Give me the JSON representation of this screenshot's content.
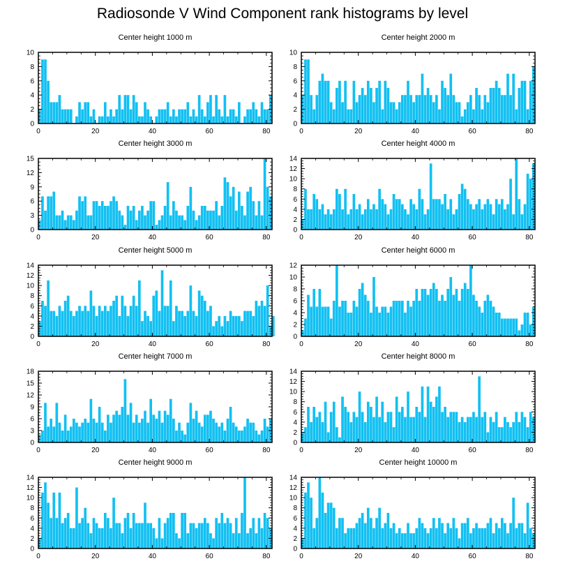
{
  "page": {
    "title": "Radiosonde V Wind Component rank histograms by level"
  },
  "chart_data": [
    {
      "type": "bar",
      "title": "Center height 1000 m",
      "xlim": [
        0,
        82
      ],
      "ylim": [
        0,
        10
      ],
      "xticks": [
        0,
        20,
        40,
        60,
        80
      ],
      "yticks": [
        0,
        2,
        4,
        6,
        8,
        10
      ],
      "xticklabels": [
        "0",
        "20",
        "40",
        "60",
        "80"
      ],
      "yticklabels": [
        "0",
        "2",
        "4",
        "6",
        "8",
        "10"
      ],
      "bar_color": "#12c0f2",
      "values": [
        2,
        9,
        9,
        6,
        3,
        3,
        3,
        4,
        2,
        2,
        2,
        2,
        0,
        1,
        3,
        2,
        3,
        3,
        1,
        2,
        0,
        1,
        1,
        3,
        1,
        2,
        1,
        2,
        4,
        2,
        4,
        4,
        2,
        4,
        3,
        1,
        1,
        3,
        2,
        1,
        0,
        1,
        2,
        2,
        2,
        3,
        1,
        2,
        1,
        2,
        2,
        2,
        3,
        1,
        2,
        1,
        4,
        2,
        1,
        3,
        4,
        1,
        4,
        2,
        1,
        4,
        1,
        2,
        2,
        1,
        3,
        0,
        1,
        2,
        2,
        3,
        2,
        1,
        3,
        2,
        2,
        4
      ]
    },
    {
      "type": "bar",
      "title": "Center height 2000 m",
      "xlim": [
        0,
        82
      ],
      "ylim": [
        0,
        10
      ],
      "xticks": [
        0,
        20,
        40,
        60,
        80
      ],
      "yticks": [
        0,
        2,
        4,
        6,
        8,
        10
      ],
      "xticklabels": [
        "0",
        "20",
        "40",
        "60",
        "80"
      ],
      "yticklabels": [
        "0",
        "2",
        "4",
        "6",
        "8",
        "10"
      ],
      "bar_color": "#12c0f2",
      "values": [
        4,
        9,
        9,
        4,
        2,
        4,
        6,
        7,
        6,
        6,
        3,
        2,
        5,
        6,
        3,
        6,
        2,
        2,
        6,
        3,
        4,
        5,
        4,
        6,
        5,
        3,
        5,
        6,
        2,
        6,
        5,
        3,
        3,
        2,
        3,
        4,
        4,
        6,
        4,
        3,
        4,
        4,
        7,
        4,
        5,
        4,
        3,
        4,
        2,
        6,
        5,
        4,
        7,
        4,
        3,
        3,
        1,
        2,
        3,
        4,
        2,
        5,
        4,
        2,
        4,
        3,
        5,
        5,
        6,
        5,
        4,
        4,
        7,
        4,
        7,
        2,
        5,
        6,
        6,
        2,
        6,
        8
      ]
    },
    {
      "type": "bar",
      "title": "Center height 3000 m",
      "xlim": [
        0,
        82
      ],
      "ylim": [
        0,
        15
      ],
      "xticks": [
        0,
        20,
        40,
        60,
        80
      ],
      "yticks": [
        0,
        3,
        6,
        9,
        12,
        15
      ],
      "xticklabels": [
        "0",
        "20",
        "40",
        "60",
        "80"
      ],
      "yticklabels": [
        "0",
        "3",
        "6",
        "9",
        "12",
        "15"
      ],
      "bar_color": "#12c0f2",
      "values": [
        2,
        7,
        4,
        7,
        7,
        8,
        3,
        3,
        4,
        2,
        3,
        3,
        2,
        4,
        7,
        6,
        7,
        3,
        3,
        6,
        6,
        5,
        6,
        5,
        5,
        6,
        7,
        6,
        4,
        3,
        1,
        5,
        4,
        5,
        2,
        4,
        5,
        3,
        4,
        6,
        6,
        1,
        2,
        3,
        5,
        10,
        3,
        6,
        4,
        3,
        3,
        2,
        5,
        9,
        4,
        2,
        3,
        5,
        5,
        4,
        4,
        4,
        6,
        3,
        5,
        11,
        10,
        7,
        9,
        4,
        8,
        5,
        3,
        8,
        9,
        6,
        3,
        6,
        3,
        15,
        9,
        7
      ]
    },
    {
      "type": "bar",
      "title": "Center height 4000 m",
      "xlim": [
        0,
        82
      ],
      "ylim": [
        0,
        14
      ],
      "xticks": [
        0,
        20,
        40,
        60,
        80
      ],
      "yticks": [
        0,
        2,
        4,
        6,
        8,
        10,
        12,
        14
      ],
      "xticklabels": [
        "0",
        "20",
        "40",
        "60",
        "80"
      ],
      "yticklabels": [
        "0",
        "2",
        "4",
        "6",
        "8",
        "10",
        "12",
        "14"
      ],
      "bar_color": "#12c0f2",
      "values": [
        2,
        8,
        4,
        4,
        7,
        6,
        4,
        5,
        3,
        4,
        3,
        4,
        8,
        7,
        4,
        8,
        3,
        4,
        7,
        4,
        5,
        3,
        4,
        6,
        4,
        5,
        4,
        8,
        6,
        5,
        3,
        4,
        7,
        6,
        6,
        5,
        4,
        3,
        6,
        5,
        4,
        8,
        6,
        3,
        4,
        13,
        6,
        6,
        6,
        5,
        7,
        4,
        6,
        3,
        4,
        7,
        9,
        8,
        6,
        5,
        4,
        5,
        6,
        4,
        5,
        6,
        5,
        3,
        6,
        5,
        6,
        4,
        5,
        10,
        3,
        14,
        6,
        3,
        5,
        11,
        10,
        13
      ]
    },
    {
      "type": "bar",
      "title": "Center height 5000 m",
      "xlim": [
        0,
        82
      ],
      "ylim": [
        0,
        14
      ],
      "xticks": [
        0,
        20,
        40,
        60,
        80
      ],
      "yticks": [
        0,
        2,
        4,
        6,
        8,
        10,
        12,
        14
      ],
      "xticklabels": [
        "0",
        "20",
        "40",
        "60",
        "80"
      ],
      "yticklabels": [
        "0",
        "2",
        "4",
        "6",
        "8",
        "10",
        "12",
        "14"
      ],
      "bar_color": "#12c0f2",
      "values": [
        3,
        7,
        6,
        11,
        5,
        5,
        4,
        6,
        5,
        7,
        8,
        5,
        4,
        5,
        6,
        5,
        6,
        5,
        9,
        6,
        4,
        6,
        5,
        6,
        5,
        6,
        7,
        8,
        4,
        8,
        6,
        4,
        6,
        8,
        6,
        11,
        3,
        5,
        4,
        3,
        8,
        9,
        5,
        13,
        6,
        6,
        11,
        3,
        6,
        5,
        5,
        4,
        5,
        10,
        5,
        4,
        9,
        8,
        7,
        5,
        6,
        2,
        3,
        4,
        2,
        4,
        3,
        5,
        4,
        4,
        4,
        3,
        5,
        5,
        5,
        4,
        7,
        6,
        7,
        6,
        10,
        2,
        4
      ]
    },
    {
      "type": "bar",
      "title": "Center height 6000 m",
      "xlim": [
        0,
        82
      ],
      "ylim": [
        0,
        12
      ],
      "xticks": [
        0,
        20,
        40,
        60,
        80
      ],
      "yticks": [
        0,
        2,
        4,
        6,
        8,
        10,
        12
      ],
      "xticklabels": [
        "0",
        "20",
        "40",
        "60",
        "80"
      ],
      "yticklabels": [
        "0",
        "2",
        "4",
        "6",
        "8",
        "10",
        "12"
      ],
      "bar_color": "#12c0f2",
      "values": [
        1,
        3,
        7,
        5,
        8,
        5,
        8,
        5,
        5,
        5,
        3,
        6,
        12,
        5,
        6,
        6,
        4,
        4,
        6,
        5,
        8,
        9,
        7,
        6,
        4,
        10,
        5,
        4,
        5,
        5,
        4,
        5,
        6,
        6,
        6,
        6,
        4,
        6,
        5,
        6,
        8,
        6,
        8,
        8,
        7,
        8,
        9,
        8,
        6,
        7,
        6,
        8,
        10,
        7,
        8,
        6,
        8,
        9,
        8,
        12,
        7,
        6,
        5,
        4,
        6,
        7,
        6,
        5,
        4,
        4,
        3,
        3,
        3,
        3,
        3,
        3,
        1,
        2,
        4,
        4,
        2,
        5
      ]
    },
    {
      "type": "bar",
      "title": "Center height 7000 m",
      "xlim": [
        0,
        82
      ],
      "ylim": [
        0,
        18
      ],
      "xticks": [
        0,
        20,
        40,
        60,
        80
      ],
      "yticks": [
        0,
        3,
        6,
        9,
        12,
        15,
        18
      ],
      "xticklabels": [
        "0",
        "20",
        "40",
        "60",
        "80"
      ],
      "yticklabels": [
        "0",
        "3",
        "6",
        "9",
        "12",
        "15",
        "18"
      ],
      "bar_color": "#12c0f2",
      "values": [
        2,
        3,
        10,
        4,
        6,
        4,
        10,
        5,
        3,
        7,
        3,
        4,
        6,
        5,
        4,
        5,
        6,
        5,
        11,
        6,
        5,
        9,
        5,
        3,
        7,
        5,
        7,
        8,
        7,
        9,
        16,
        7,
        10,
        5,
        7,
        5,
        6,
        8,
        5,
        11,
        7,
        6,
        8,
        5,
        8,
        7,
        11,
        6,
        3,
        5,
        3,
        2,
        5,
        10,
        6,
        8,
        5,
        4,
        7,
        7,
        8,
        6,
        5,
        4,
        5,
        3,
        6,
        9,
        5,
        4,
        3,
        3,
        4,
        6,
        5,
        5,
        3,
        2,
        3,
        6,
        4,
        6
      ]
    },
    {
      "type": "bar",
      "title": "Center height 8000 m",
      "xlim": [
        0,
        82
      ],
      "ylim": [
        0,
        14
      ],
      "xticks": [
        0,
        20,
        40,
        60,
        80
      ],
      "yticks": [
        0,
        2,
        4,
        6,
        8,
        10,
        12,
        14
      ],
      "xticklabels": [
        "0",
        "20",
        "40",
        "60",
        "80"
      ],
      "yticklabels": [
        "0",
        "2",
        "4",
        "6",
        "8",
        "10",
        "12",
        "14"
      ],
      "bar_color": "#12c0f2",
      "values": [
        2,
        3,
        7,
        4,
        7,
        5,
        6,
        4,
        8,
        2,
        6,
        8,
        3,
        1,
        9,
        7,
        6,
        4,
        6,
        5,
        10,
        6,
        4,
        8,
        7,
        5,
        9,
        5,
        8,
        4,
        6,
        6,
        3,
        9,
        6,
        7,
        5,
        10,
        5,
        5,
        7,
        6,
        11,
        5,
        11,
        8,
        7,
        9,
        11,
        6,
        7,
        5,
        6,
        6,
        6,
        4,
        5,
        4,
        5,
        5,
        6,
        5,
        13,
        5,
        6,
        2,
        5,
        4,
        6,
        3,
        3,
        5,
        4,
        3,
        4,
        6,
        4,
        6,
        5,
        3,
        6,
        5
      ]
    },
    {
      "type": "bar",
      "title": "Center height 9000 m",
      "xlim": [
        0,
        82
      ],
      "ylim": [
        0,
        14
      ],
      "xticks": [
        0,
        20,
        40,
        60,
        80
      ],
      "yticks": [
        0,
        2,
        4,
        6,
        8,
        10,
        12,
        14
      ],
      "xticklabels": [
        "0",
        "20",
        "40",
        "60",
        "80"
      ],
      "yticklabels": [
        "0",
        "2",
        "4",
        "6",
        "8",
        "10",
        "12",
        "14"
      ],
      "bar_color": "#12c0f2",
      "values": [
        2,
        11,
        13,
        9,
        6,
        11,
        6,
        11,
        5,
        6,
        7,
        4,
        4,
        12,
        5,
        6,
        8,
        5,
        3,
        6,
        5,
        4,
        4,
        7,
        6,
        4,
        10,
        5,
        5,
        3,
        6,
        7,
        4,
        7,
        5,
        5,
        5,
        9,
        5,
        5,
        4,
        2,
        6,
        2,
        5,
        6,
        7,
        7,
        3,
        2,
        7,
        7,
        3,
        5,
        5,
        4,
        5,
        5,
        6,
        5,
        3,
        2,
        6,
        5,
        7,
        5,
        6,
        5,
        3,
        6,
        3,
        7,
        14,
        3,
        4,
        6,
        3,
        6,
        4,
        7,
        6,
        4
      ]
    },
    {
      "type": "bar",
      "title": "Center height 10000 m",
      "xlim": [
        0,
        82
      ],
      "ylim": [
        0,
        14
      ],
      "xticks": [
        0,
        20,
        40,
        60,
        80
      ],
      "yticks": [
        0,
        2,
        4,
        6,
        8,
        10,
        12,
        14
      ],
      "xticklabels": [
        "0",
        "20",
        "40",
        "60",
        "80"
      ],
      "yticklabels": [
        "0",
        "2",
        "4",
        "6",
        "8",
        "10",
        "12",
        "14"
      ],
      "bar_color": "#12c0f2",
      "values": [
        2,
        11,
        13,
        10,
        4,
        6,
        14,
        11,
        7,
        9,
        9,
        8,
        4,
        6,
        6,
        3,
        4,
        4,
        4,
        5,
        6,
        7,
        5,
        8,
        6,
        4,
        6,
        8,
        4,
        5,
        7,
        4,
        5,
        3,
        4,
        3,
        3,
        5,
        3,
        3,
        4,
        6,
        5,
        4,
        3,
        4,
        6,
        4,
        6,
        5,
        3,
        5,
        4,
        6,
        4,
        2,
        5,
        5,
        6,
        3,
        4,
        5,
        4,
        4,
        4,
        5,
        6,
        3,
        5,
        4,
        6,
        5,
        3,
        5,
        10,
        4,
        5,
        5,
        3,
        9,
        4,
        3
      ]
    }
  ]
}
